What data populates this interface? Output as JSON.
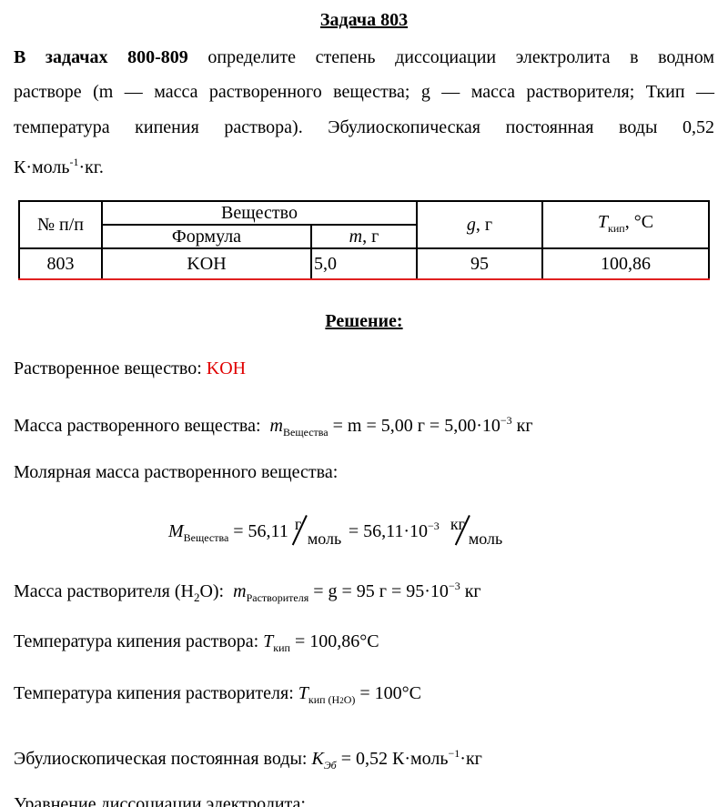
{
  "title": "Задача 803",
  "intro": {
    "bold": "В задачах 800-809",
    "line1": " определите степень диссоциации электролита в водном",
    "line2": "растворе (m — масса растворенного вещества; g — масса растворителя; Ткип —",
    "line3": "температура кипения раствора). Эбулиоскопическая постоянная воды 0,52",
    "line4a": "К·моль",
    "line4sup": "-1",
    "line4b": "·кг."
  },
  "table": {
    "headers": {
      "num": "№ п/п",
      "substance": "Вещество",
      "formula": "Формула",
      "m": "m",
      "m_unit": ", г",
      "g": "g",
      "g_unit": ", г",
      "t": "T",
      "t_sub": "кип",
      "t_unit": ", °С"
    },
    "row": {
      "num": "803",
      "formula": "KOH",
      "m": "5,0",
      "g": "95",
      "t": "100,86"
    }
  },
  "solution_title": "Решение:",
  "lines": {
    "solute": {
      "label": "Растворенное вещество: ",
      "value": "KOH",
      "value_color": "#e00000"
    },
    "mass": {
      "label": "Масса растворенного вещества:",
      "sym": "m",
      "sub": "Вещества",
      "eq": " = m = 5,00 г  = 5,00·10",
      "exp": "−3",
      "unit": " кг"
    },
    "molar_label": "Молярная масса растворенного вещества:",
    "molar": {
      "sym": "M",
      "sub": "Вещества",
      "eq": " = 56,11 ",
      "n1": "г",
      "d1": "моль",
      "eq2": " = 56,11·10",
      "exp": "−3",
      "n2": "кг",
      "d2": "моль"
    },
    "solvent": {
      "label": "Масса растворителя (H",
      "label_sub": "2",
      "label_end": "O):",
      "sym": "m",
      "sub": "Растворителя",
      "eq": " = g = 95 г  = 95·10",
      "exp": "−3",
      "unit": " кг"
    },
    "tsol": {
      "label": "Температура кипения раствора:",
      "sym": "T",
      "sub": "кип",
      "eq": " = 100,86°C"
    },
    "tsolv": {
      "label": "Температура кипения растворителя:",
      "sym": "T",
      "sub": "кип (H",
      "sub2": "2",
      "sub3": "O)",
      "eq": " = 100°C"
    },
    "keb": {
      "label": "Эбулиоскопическая постоянная воды:",
      "sym": "K",
      "sub": "Эб",
      "eq": " = 0,52 К·моль",
      "exp": "−1",
      "unit": "·кг"
    },
    "dissoc": "Уравнение диссоциации электролита:"
  }
}
